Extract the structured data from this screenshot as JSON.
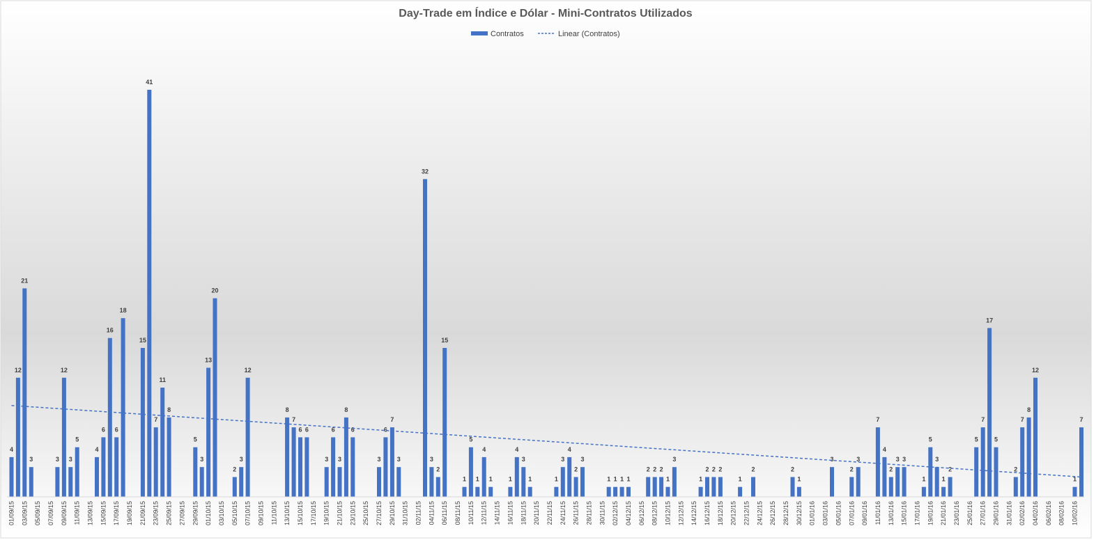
{
  "chart_data": {
    "type": "bar",
    "title": "Day-Trade em Índice e Dólar - Mini-Contratos Utilizados",
    "xlabel": "",
    "ylabel": "",
    "ylim": [
      0,
      41
    ],
    "grid": false,
    "legend_position": "top",
    "colors": {
      "bar": "#4472C4",
      "trend": "#4472C4",
      "title": "#595959",
      "text": "#404040"
    },
    "categories": [
      "01/09/15",
      "03/09/15",
      "05/09/15",
      "07/09/15",
      "09/09/15",
      "11/09/15",
      "13/09/15",
      "15/09/15",
      "17/09/15",
      "19/09/15",
      "21/09/15",
      "23/09/15",
      "25/09/15",
      "27/09/15",
      "29/09/15",
      "01/10/15",
      "03/10/15",
      "05/10/15",
      "07/10/15",
      "09/10/15",
      "11/10/15",
      "13/10/15",
      "15/10/15",
      "17/10/15",
      "19/10/15",
      "21/10/15",
      "23/10/15",
      "25/10/15",
      "27/10/15",
      "29/10/15",
      "31/10/15",
      "02/11/15",
      "04/11/15",
      "06/11/15",
      "08/11/15",
      "10/11/15",
      "12/11/15",
      "14/11/15",
      "16/11/15",
      "18/11/15",
      "20/11/15",
      "22/11/15",
      "24/11/15",
      "26/11/15",
      "28/11/15",
      "30/11/15",
      "02/12/15",
      "04/12/15",
      "06/12/15",
      "08/12/15",
      "10/12/15",
      "12/12/15",
      "14/12/15",
      "16/12/15",
      "18/12/15",
      "20/12/15",
      "22/12/15",
      "24/12/15",
      "26/12/15",
      "28/12/15",
      "30/12/15",
      "01/01/16",
      "03/01/16",
      "05/01/16",
      "07/01/16",
      "09/01/16",
      "11/01/16",
      "13/01/16",
      "15/01/16",
      "17/01/16",
      "19/01/16",
      "21/01/16",
      "23/01/16",
      "25/01/16",
      "27/01/16",
      "29/01/16",
      "31/01/16",
      "02/02/16",
      "04/02/16",
      "06/02/16",
      "08/02/16",
      "10/02/16"
    ],
    "series": [
      {
        "name": "Contratos",
        "points": [
          {
            "x": "01/09/15",
            "y": 4
          },
          {
            "x": "02/09/15",
            "y": 12
          },
          {
            "x": "03/09/15",
            "y": 21
          },
          {
            "x": "04/09/15",
            "y": 3
          },
          {
            "x": "08/09/15",
            "y": 3
          },
          {
            "x": "09/09/15",
            "y": 12
          },
          {
            "x": "10/09/15",
            "y": 3
          },
          {
            "x": "11/09/15",
            "y": 5
          },
          {
            "x": "14/09/15",
            "y": 4
          },
          {
            "x": "15/09/15",
            "y": 6
          },
          {
            "x": "16/09/15",
            "y": 16
          },
          {
            "x": "17/09/15",
            "y": 6
          },
          {
            "x": "18/09/15",
            "y": 18
          },
          {
            "x": "21/09/15",
            "y": 15
          },
          {
            "x": "22/09/15",
            "y": 41
          },
          {
            "x": "23/09/15",
            "y": 7
          },
          {
            "x": "24/09/15",
            "y": 11
          },
          {
            "x": "25/09/15",
            "y": 8
          },
          {
            "x": "29/09/15",
            "y": 5
          },
          {
            "x": "30/09/15",
            "y": 3
          },
          {
            "x": "01/10/15",
            "y": 13
          },
          {
            "x": "02/10/15",
            "y": 20
          },
          {
            "x": "05/10/15",
            "y": 2
          },
          {
            "x": "06/10/15",
            "y": 3
          },
          {
            "x": "07/10/15",
            "y": 12
          },
          {
            "x": "13/10/15",
            "y": 8
          },
          {
            "x": "14/10/15",
            "y": 7
          },
          {
            "x": "15/10/15",
            "y": 6
          },
          {
            "x": "16/10/15",
            "y": 6
          },
          {
            "x": "19/10/15",
            "y": 3
          },
          {
            "x": "20/10/15",
            "y": 6
          },
          {
            "x": "21/10/15",
            "y": 3
          },
          {
            "x": "22/10/15",
            "y": 8
          },
          {
            "x": "23/10/15",
            "y": 6
          },
          {
            "x": "27/10/15",
            "y": 3
          },
          {
            "x": "28/10/15",
            "y": 6
          },
          {
            "x": "29/10/15",
            "y": 7
          },
          {
            "x": "30/10/15",
            "y": 3
          },
          {
            "x": "03/11/15",
            "y": 32
          },
          {
            "x": "04/11/15",
            "y": 3
          },
          {
            "x": "05/11/15",
            "y": 2
          },
          {
            "x": "06/11/15",
            "y": 15
          },
          {
            "x": "09/11/15",
            "y": 1
          },
          {
            "x": "10/11/15",
            "y": 5
          },
          {
            "x": "11/11/15",
            "y": 1
          },
          {
            "x": "12/11/15",
            "y": 4
          },
          {
            "x": "13/11/15",
            "y": 1
          },
          {
            "x": "16/11/15",
            "y": 1
          },
          {
            "x": "17/11/15",
            "y": 4
          },
          {
            "x": "18/11/15",
            "y": 3
          },
          {
            "x": "19/11/15",
            "y": 1
          },
          {
            "x": "23/11/15",
            "y": 1
          },
          {
            "x": "24/11/15",
            "y": 3
          },
          {
            "x": "25/11/15",
            "y": 4
          },
          {
            "x": "26/11/15",
            "y": 2
          },
          {
            "x": "27/11/15",
            "y": 3
          },
          {
            "x": "01/12/15",
            "y": 1
          },
          {
            "x": "02/12/15",
            "y": 1
          },
          {
            "x": "03/12/15",
            "y": 1
          },
          {
            "x": "04/12/15",
            "y": 1
          },
          {
            "x": "07/12/15",
            "y": 2
          },
          {
            "x": "08/12/15",
            "y": 2
          },
          {
            "x": "09/12/15",
            "y": 2
          },
          {
            "x": "10/12/15",
            "y": 1
          },
          {
            "x": "11/12/15",
            "y": 3
          },
          {
            "x": "15/12/15",
            "y": 1
          },
          {
            "x": "16/12/15",
            "y": 2
          },
          {
            "x": "17/12/15",
            "y": 2
          },
          {
            "x": "18/12/15",
            "y": 2
          },
          {
            "x": "21/12/15",
            "y": 1
          },
          {
            "x": "23/12/15",
            "y": 2
          },
          {
            "x": "29/12/15",
            "y": 2
          },
          {
            "x": "30/12/15",
            "y": 1
          },
          {
            "x": "04/01/16",
            "y": 3
          },
          {
            "x": "07/01/16",
            "y": 2
          },
          {
            "x": "08/01/16",
            "y": 3
          },
          {
            "x": "11/01/16",
            "y": 7
          },
          {
            "x": "12/01/16",
            "y": 4
          },
          {
            "x": "13/01/16",
            "y": 2
          },
          {
            "x": "14/01/16",
            "y": 3
          },
          {
            "x": "15/01/16",
            "y": 3
          },
          {
            "x": "18/01/16",
            "y": 1
          },
          {
            "x": "19/01/16",
            "y": 5
          },
          {
            "x": "20/01/16",
            "y": 3
          },
          {
            "x": "21/01/16",
            "y": 1
          },
          {
            "x": "22/01/16",
            "y": 2
          },
          {
            "x": "26/01/16",
            "y": 5
          },
          {
            "x": "27/01/16",
            "y": 7
          },
          {
            "x": "28/01/16",
            "y": 17
          },
          {
            "x": "29/01/16",
            "y": 5
          },
          {
            "x": "01/02/16",
            "y": 2
          },
          {
            "x": "02/02/16",
            "y": 7
          },
          {
            "x": "03/02/16",
            "y": 8
          },
          {
            "x": "04/02/16",
            "y": 12
          },
          {
            "x": "10/02/16",
            "y": 1
          },
          {
            "x": "11/02/16",
            "y": 7
          }
        ]
      },
      {
        "name": "Linear (Contratos)",
        "type": "trendline",
        "start": {
          "x": "01/09/15",
          "y": 9.2
        },
        "end": {
          "x": "11/02/16",
          "y": 2.0
        }
      }
    ]
  }
}
